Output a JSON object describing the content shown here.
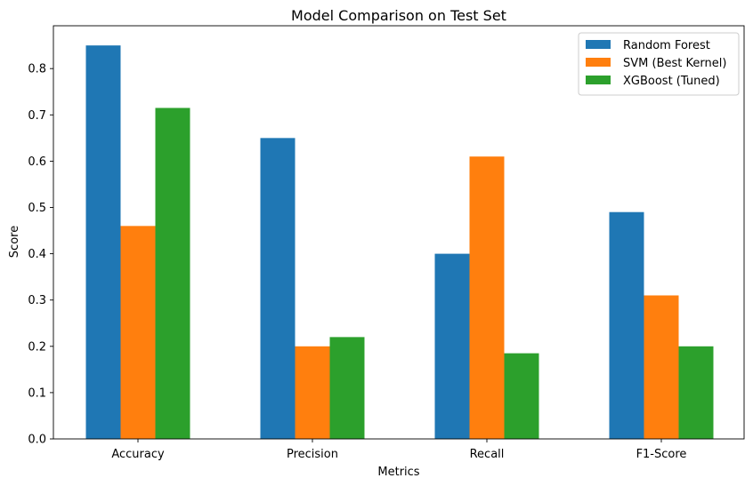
{
  "chart_data": {
    "type": "bar",
    "title": "Model Comparison on Test Set",
    "xlabel": "Metrics",
    "ylabel": "Score",
    "categories": [
      "Accuracy",
      "Precision",
      "Recall",
      "F1-Score"
    ],
    "series": [
      {
        "name": "Random Forest",
        "color": "#1f77b4",
        "values": [
          0.85,
          0.65,
          0.4,
          0.49
        ]
      },
      {
        "name": "SVM (Best Kernel)",
        "color": "#ff7f0e",
        "values": [
          0.46,
          0.2,
          0.61,
          0.31
        ]
      },
      {
        "name": "XGBoost (Tuned)",
        "color": "#2ca02c",
        "values": [
          0.715,
          0.22,
          0.185,
          0.2
        ]
      }
    ],
    "ylim": [
      0,
      0.8925
    ],
    "yticks": [
      "0.0",
      "0.1",
      "0.2",
      "0.3",
      "0.4",
      "0.5",
      "0.6",
      "0.7",
      "0.8"
    ],
    "grid": false,
    "legend_position": "top-right"
  }
}
